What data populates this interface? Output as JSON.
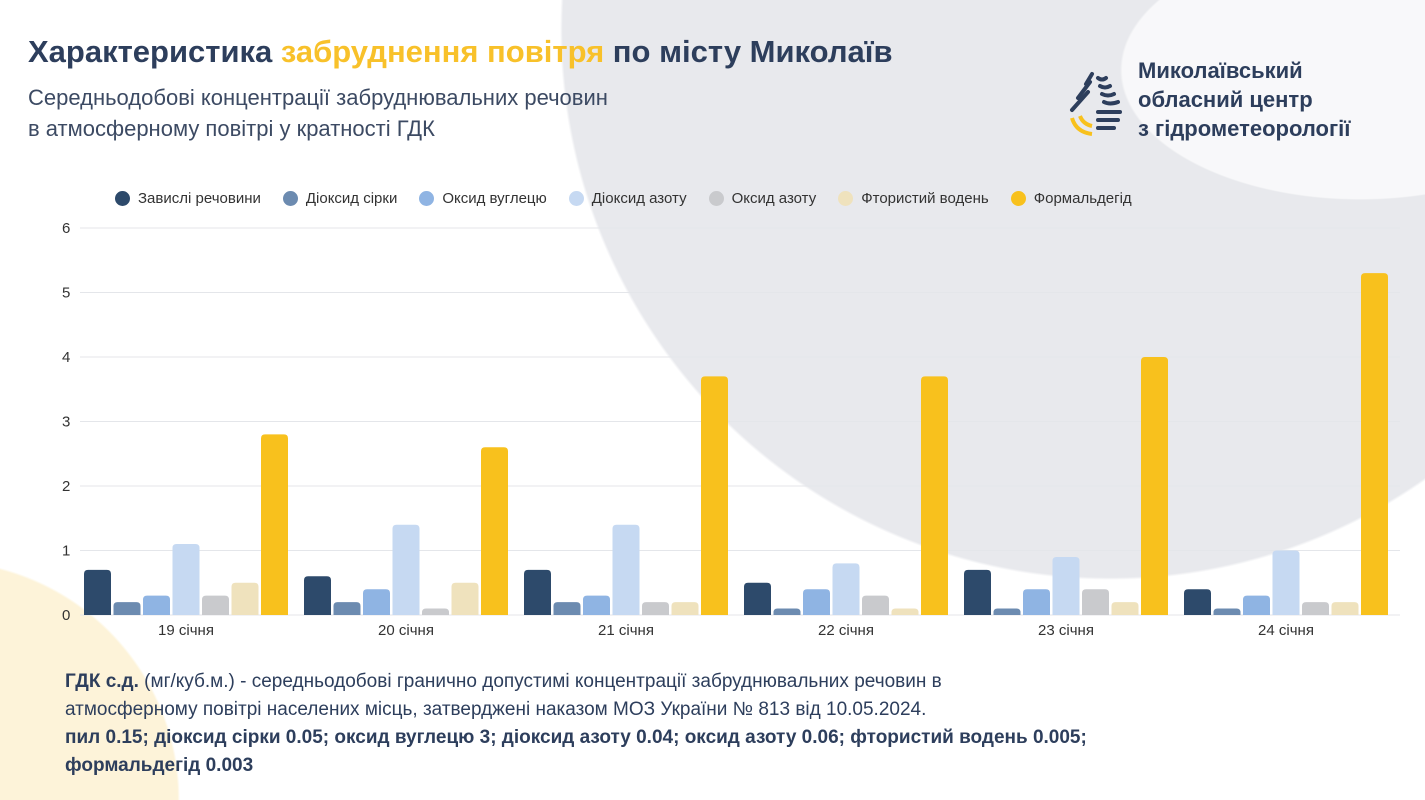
{
  "header": {
    "title_part1": "Характеристика ",
    "title_highlight": "забруднення повітря",
    "title_part2": " по місту Миколаїв",
    "subtitle_line1": "Середньодобові концентрації забруднювальних речовин",
    "subtitle_line2": "в атмосферному повітрі у кратності ГДК"
  },
  "org": {
    "line1": "Миколаївський",
    "line2": "обласний центр",
    "line3": "з гідрометеорології"
  },
  "chart_data": {
    "type": "bar",
    "categories": [
      "19 січня",
      "20 січня",
      "21 січня",
      "22 січня",
      "23 січня",
      "24 січня"
    ],
    "ylim": [
      0,
      6
    ],
    "yticks": [
      "0",
      "1",
      "2",
      "3",
      "4",
      "5",
      "6"
    ],
    "legend_position": "top",
    "series": [
      {
        "name": "Завислі речовини",
        "color": "#2d4a6b",
        "values": [
          0.7,
          0.6,
          0.7,
          0.5,
          0.7,
          0.4
        ]
      },
      {
        "name": "Діоксид сірки",
        "color": "#6c8bb0",
        "values": [
          0.2,
          0.2,
          0.2,
          0.1,
          0.1,
          0.1
        ]
      },
      {
        "name": "Оксид вуглецю",
        "color": "#8fb4e3",
        "values": [
          0.3,
          0.4,
          0.3,
          0.4,
          0.4,
          0.3
        ]
      },
      {
        "name": "Діоксид азоту",
        "color": "#c6d9f2",
        "values": [
          1.1,
          1.4,
          1.4,
          0.8,
          0.9,
          1.0
        ]
      },
      {
        "name": "Оксид азоту",
        "color": "#c9cacd",
        "values": [
          0.3,
          0.1,
          0.2,
          0.3,
          0.4,
          0.2
        ]
      },
      {
        "name": "Фтористий водень",
        "color": "#efe2bd",
        "values": [
          0.5,
          0.5,
          0.2,
          0.1,
          0.2,
          0.2
        ]
      },
      {
        "name": "Формальдегід",
        "color": "#f8c11d",
        "values": [
          2.8,
          2.6,
          3.7,
          3.7,
          4.0,
          5.3
        ]
      }
    ]
  },
  "footer": {
    "gdk_label": "ГДК с.д.",
    "line1": " (мг/куб.м.) - середньодобові гранично допустимі концентрації забруднювальних речовин в",
    "line2": "атмосферному повітрі населених місць, затверджені наказом МОЗ України № 813 від 10.05.2024.",
    "line3": "пил 0.15; діоксид сірки 0.05; оксид вуглецю 3; діоксид азоту 0.04; оксид азоту 0.06; фтористий водень 0.005;",
    "line4": "формальдегід 0.003"
  }
}
